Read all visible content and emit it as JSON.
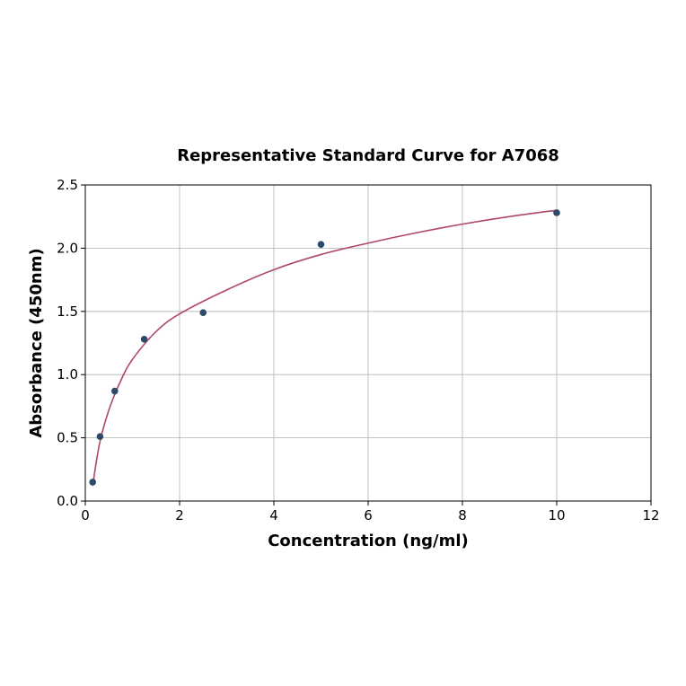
{
  "chart_data": {
    "type": "scatter",
    "title": "Representative Standard Curve for A7068",
    "xlabel": "Concentration (ng/ml)",
    "ylabel": "Absorbance (450nm)",
    "xlim": [
      0,
      12
    ],
    "ylim": [
      0,
      2.5
    ],
    "xticks": [
      "0",
      "2",
      "4",
      "6",
      "8",
      "10",
      "12"
    ],
    "yticks": [
      "0.0",
      "0.5",
      "1.0",
      "1.5",
      "2.0",
      "2.5"
    ],
    "grid": true,
    "points": {
      "x": [
        0.156,
        0.3125,
        0.625,
        1.25,
        2.5,
        5,
        10
      ],
      "y": [
        0.15,
        0.51,
        0.87,
        1.28,
        1.49,
        2.03,
        2.28
      ],
      "color": "#2e4a6b"
    },
    "fit_curve": {
      "x": [
        0.156,
        0.3,
        0.5,
        0.75,
        1,
        1.5,
        2,
        3,
        4,
        5,
        6,
        7,
        8,
        9,
        10
      ],
      "y": [
        0.12,
        0.45,
        0.72,
        0.95,
        1.12,
        1.34,
        1.48,
        1.67,
        1.83,
        1.95,
        2.04,
        2.12,
        2.19,
        2.25,
        2.3
      ],
      "color": "#b0476b"
    }
  }
}
